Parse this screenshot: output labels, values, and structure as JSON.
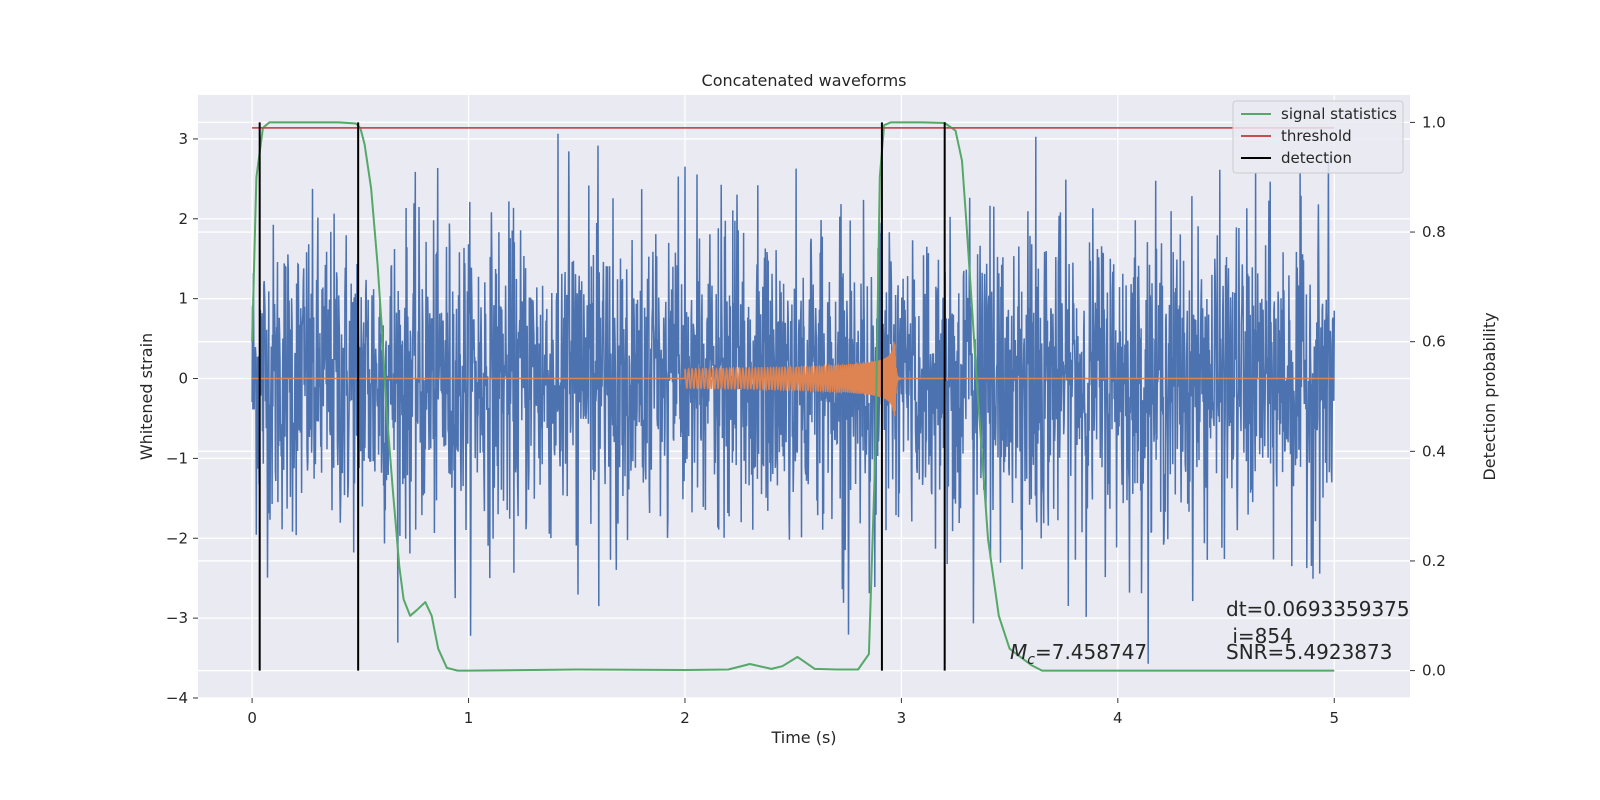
{
  "chart_data": {
    "type": "line",
    "title": "Concatenated waveforms",
    "xlabel": "Time (s)",
    "ylabel_left": "Whitened strain",
    "ylabel_right": "Detection probability",
    "xlim": [
      -0.25,
      5.35
    ],
    "ylim_left": [
      -4,
      3.55
    ],
    "ylim_right": [
      -0.05,
      1.05
    ],
    "xticks": [
      0,
      1,
      2,
      3,
      4,
      5
    ],
    "yticks_left": [
      -4,
      -3,
      -2,
      -1,
      0,
      1,
      2,
      3
    ],
    "yticks_right": [
      0.0,
      0.2,
      0.4,
      0.6,
      0.8,
      1.0
    ],
    "yticks_right_labels": [
      "0.0",
      "0.2",
      "0.4",
      "0.6",
      "0.8",
      "1.0"
    ],
    "grid": true,
    "legend_position": "top-right",
    "colors": {
      "background": "#eaeaf2",
      "noise": "#4c72b0",
      "template": "#dd8452",
      "statistic": "#55a868",
      "threshold": "#c44e52",
      "detection": "#000000",
      "grid": "#ffffff"
    },
    "series": [
      {
        "name": "",
        "role": "whitened strain noise",
        "axis": "left",
        "x_range": [
          0,
          5
        ],
        "envelope_typical": [
          -1.6,
          1.6
        ],
        "peak_max": 3.1,
        "peak_min": -3.6
      },
      {
        "name": "",
        "role": "injected chirp template",
        "axis": "left",
        "x_range": [
          2.0,
          3.0
        ],
        "start_amplitude": 0.12,
        "peak_amplitude": 0.65,
        "merger_time": 2.97
      },
      {
        "name": "signal statistics",
        "axis": "right",
        "x": [
          0.0,
          0.02,
          0.05,
          0.08,
          0.12,
          0.2,
          0.3,
          0.4,
          0.48,
          0.5,
          0.52,
          0.55,
          0.58,
          0.6,
          0.62,
          0.65,
          0.68,
          0.7,
          0.73,
          0.76,
          0.8,
          0.83,
          0.86,
          0.9,
          0.95,
          1.0,
          1.5,
          2.0,
          2.2,
          2.3,
          2.4,
          2.45,
          2.52,
          2.6,
          2.7,
          2.8,
          2.85,
          2.88,
          2.9,
          2.92,
          2.95,
          3.0,
          3.1,
          3.2,
          3.25,
          3.28,
          3.3,
          3.35,
          3.4,
          3.45,
          3.5,
          3.55,
          3.6,
          3.65,
          4.0,
          5.0
        ],
        "y": [
          0.6,
          0.9,
          0.99,
          1.0,
          1.0,
          1.0,
          1.0,
          1.0,
          0.998,
          0.99,
          0.96,
          0.88,
          0.74,
          0.62,
          0.48,
          0.33,
          0.19,
          0.13,
          0.1,
          0.11,
          0.125,
          0.1,
          0.04,
          0.005,
          0.0,
          0.0,
          0.002,
          0.001,
          0.002,
          0.012,
          0.003,
          0.008,
          0.025,
          0.003,
          0.002,
          0.002,
          0.03,
          0.4,
          0.9,
          0.995,
          1.0,
          1.0,
          1.0,
          0.999,
          0.985,
          0.93,
          0.82,
          0.52,
          0.24,
          0.1,
          0.04,
          0.025,
          0.01,
          0.0,
          0.0,
          0.0
        ]
      },
      {
        "name": "threshold",
        "axis": "right",
        "x": [
          0.0,
          5.0
        ],
        "y": [
          0.99,
          0.99
        ]
      },
      {
        "name": "detection",
        "axis": "right",
        "vlines_x": [
          0.035,
          0.49,
          2.91,
          3.2
        ],
        "y_range": [
          0.0,
          1.0
        ]
      }
    ],
    "annotations": {
      "mc_symbol": "M",
      "mc_subscript": "c",
      "mc_value": "=7.458747",
      "dt": "dt=0.0693359375",
      "i": " i=854",
      "snr": "SNR=5.4923873"
    }
  }
}
